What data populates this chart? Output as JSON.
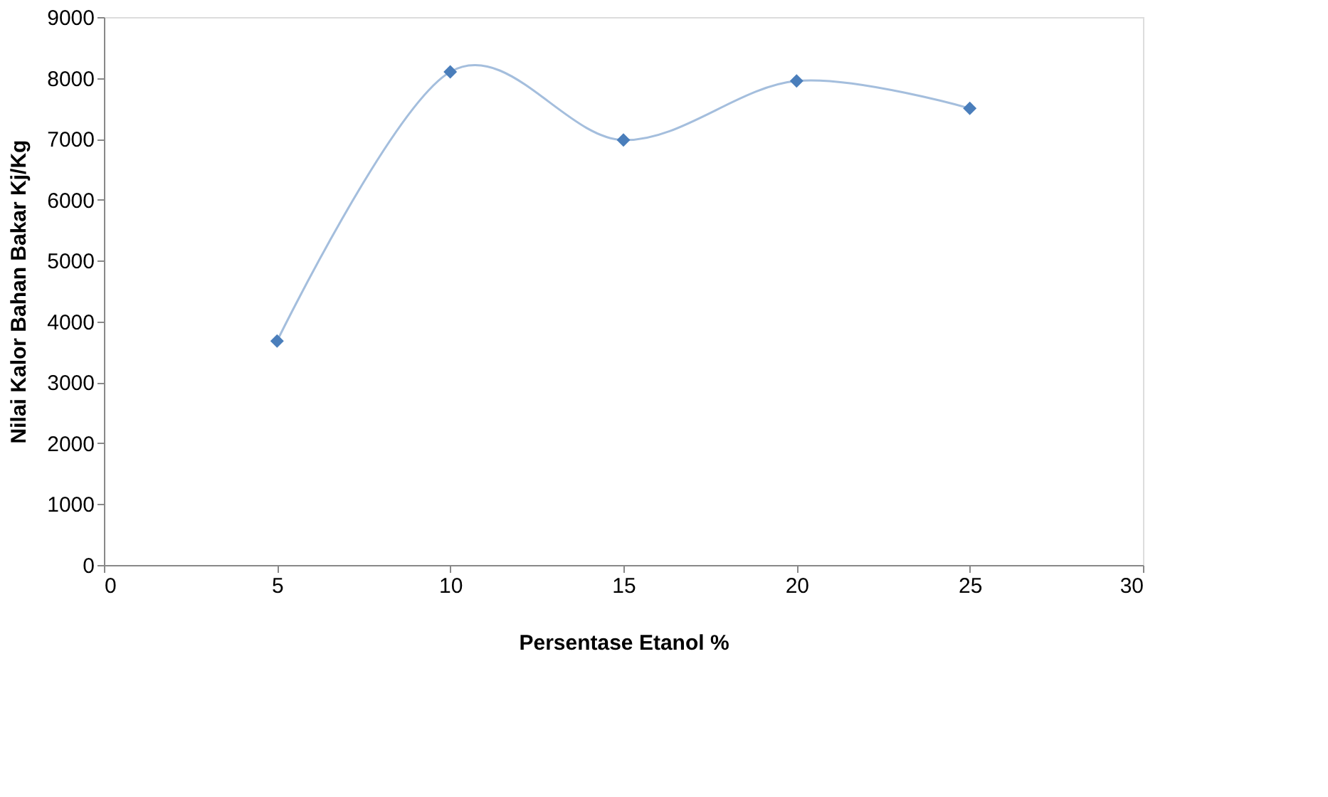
{
  "chart_data": {
    "type": "line",
    "xlabel": "Persentase Etanol %",
    "ylabel": "Nilai Kalor Bahan Bakar  Kj/Kg",
    "x": [
      5,
      10,
      15,
      20,
      25
    ],
    "series": [
      {
        "color": "#4a7ebb",
        "values": [
          3680,
          8100,
          6980,
          7950,
          7500
        ]
      }
    ],
    "xlim": [
      0,
      30
    ],
    "xticks": [
      0,
      5,
      10,
      15,
      20,
      25,
      30
    ],
    "ylim": [
      0,
      9000
    ],
    "yticks": [
      0,
      1000,
      2000,
      3000,
      4000,
      5000,
      6000,
      7000,
      8000,
      9000
    ],
    "grid": false,
    "marker": "diamond",
    "line_style": "solid"
  }
}
